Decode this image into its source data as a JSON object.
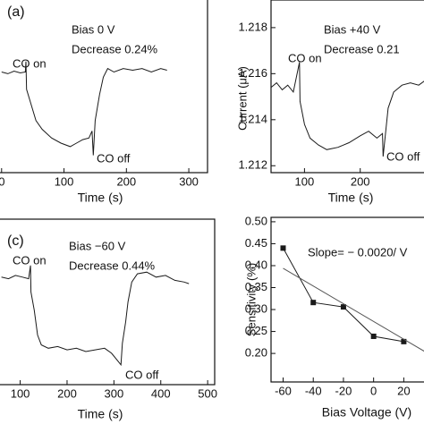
{
  "chart_data": [
    {
      "type": "line",
      "panel_label": "(a)",
      "annotations": [
        "Bias 0 V",
        "Decrease 0.24%",
        "CO on",
        "CO off"
      ],
      "x_label": "Time (s)",
      "xlim": [
        -4,
        330
      ],
      "xticks": [
        0,
        100,
        200,
        300
      ],
      "ylim": [
        0,
        1
      ],
      "series": [
        {
          "color": "#1a1a1a",
          "x": [
            0,
            10,
            20,
            30,
            38,
            39,
            40,
            45,
            55,
            65,
            80,
            95,
            110,
            120,
            130,
            140,
            145,
            147,
            150,
            157,
            163,
            170,
            180,
            195,
            210,
            225,
            240,
            255,
            265
          ],
          "values": [
            0.58,
            0.57,
            0.585,
            0.575,
            0.58,
            0.64,
            0.48,
            0.42,
            0.3,
            0.25,
            0.2,
            0.17,
            0.15,
            0.17,
            0.19,
            0.2,
            0.24,
            0.1,
            0.3,
            0.45,
            0.55,
            0.6,
            0.58,
            0.6,
            0.59,
            0.6,
            0.58,
            0.6,
            0.59
          ]
        }
      ]
    },
    {
      "type": "line",
      "annotations": [
        "Bias +40 V",
        "Decrease 0.21",
        "CO on",
        "CO off"
      ],
      "x_label": "Time (s)",
      "y_label": "Current (μA)",
      "xlim": [
        40,
        316
      ],
      "xticks": [
        100,
        200
      ],
      "ylim": [
        1.2117,
        1.2192
      ],
      "yticks": [
        1.212,
        1.214,
        1.216,
        1.218
      ],
      "series": [
        {
          "color": "#1a1a1a",
          "x": [
            40,
            50,
            60,
            70,
            80,
            91,
            92,
            100,
            110,
            125,
            140,
            160,
            180,
            200,
            215,
            230,
            240,
            241,
            250,
            260,
            275,
            290,
            305,
            316
          ],
          "values": [
            1.2154,
            1.2156,
            1.2153,
            1.2155,
            1.2152,
            1.2165,
            1.2148,
            1.2138,
            1.2132,
            1.2129,
            1.2127,
            1.2128,
            1.213,
            1.2133,
            1.2135,
            1.2132,
            1.2134,
            1.2124,
            1.2145,
            1.2152,
            1.2155,
            1.2156,
            1.2155,
            1.2157
          ]
        }
      ]
    },
    {
      "type": "line",
      "panel_label": "(c)",
      "annotations": [
        "Bias −60 V",
        "Decrease 0.44%",
        "CO on",
        "CO off"
      ],
      "x_label": "Time (s)",
      "xlim": [
        55,
        515
      ],
      "xticks": [
        100,
        200,
        300,
        400,
        500
      ],
      "ylim": [
        0,
        1
      ],
      "series": [
        {
          "color": "#1a1a1a",
          "x": [
            60,
            75,
            90,
            105,
            118,
            122,
            123,
            130,
            137,
            145,
            160,
            180,
            200,
            220,
            240,
            260,
            280,
            295,
            315,
            318,
            325,
            330,
            338,
            350,
            370,
            390,
            410,
            430,
            450,
            460
          ],
          "values": [
            0.65,
            0.64,
            0.66,
            0.65,
            0.64,
            0.72,
            0.56,
            0.45,
            0.3,
            0.24,
            0.22,
            0.23,
            0.21,
            0.22,
            0.2,
            0.21,
            0.22,
            0.19,
            0.12,
            0.25,
            0.38,
            0.5,
            0.62,
            0.67,
            0.68,
            0.65,
            0.66,
            0.63,
            0.62,
            0.61
          ]
        }
      ]
    },
    {
      "type": "line",
      "annotations": [
        "Slope= − 0.0020/ V"
      ],
      "x_label": "Bias Voltage (V)",
      "y_label": "Sensitivity (%)",
      "xlim": [
        -68,
        34
      ],
      "xticks": [
        -60,
        -40,
        -20,
        0,
        20
      ],
      "ylim": [
        0.135,
        0.51
      ],
      "yticks": [
        {
          "value": 0.2,
          "label": "0.20"
        },
        {
          "value": 0.25,
          "label": "0.25"
        },
        {
          "value": 0.3,
          "label": "0.30"
        },
        {
          "value": 0.35,
          "label": "0.35"
        },
        {
          "value": 0.4,
          "label": "0.40"
        },
        {
          "value": 0.45,
          "label": "0.45"
        },
        {
          "value": 0.5,
          "label": "0.50"
        }
      ],
      "series": [
        {
          "color": "#1a1a1a",
          "marker": "square",
          "x": [
            -60,
            -40,
            -20,
            0,
            20
          ],
          "values": [
            0.44,
            0.316,
            0.306,
            0.239,
            0.227
          ]
        },
        {
          "color": "#555555",
          "x": [
            -60,
            34
          ],
          "values": [
            0.394,
            0.204
          ]
        }
      ]
    }
  ]
}
